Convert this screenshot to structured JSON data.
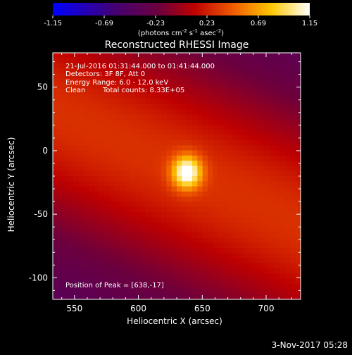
{
  "chart_data": {
    "type": "heatmap",
    "title": "Reconstructed RHESSI Image",
    "xlabel": "Heliocentric X (arcsec)",
    "ylabel": "Heliocentric Y (arcsec)",
    "xlim": [
      533,
      727
    ],
    "ylim": [
      -117,
      77
    ],
    "x_ticks": [
      550,
      600,
      650,
      700
    ],
    "y_ticks": [
      -100,
      -50,
      0,
      50
    ],
    "colorbar": {
      "colormap": "fire",
      "range": [
        -1.15,
        1.15
      ],
      "ticks": [
        "-1.15",
        "-0.69",
        "-0.23",
        "0.23",
        "0.69",
        "1.15"
      ],
      "units_main": "(photons cm",
      "units_exp1": "-2",
      "units_mid": " s",
      "units_exp2": "-1",
      "units_end": " asec",
      "units_exp3": "-2",
      "units_close": ")"
    },
    "peak": {
      "x": 638,
      "y": -17,
      "value": 1.15
    },
    "annotations": [
      "21-Jul-2016 01:31:44.000 to 01:41:44.000",
      "Detectors: 3F 8F, Att 0",
      "Energy Range: 6.0 - 12.0 keV",
      "Clean",
      "Total counts: 8.33E+05"
    ],
    "peak_label": "Position of Peak = [638,-17]"
  },
  "footer": {
    "date": "3-Nov-2017 05:28"
  }
}
